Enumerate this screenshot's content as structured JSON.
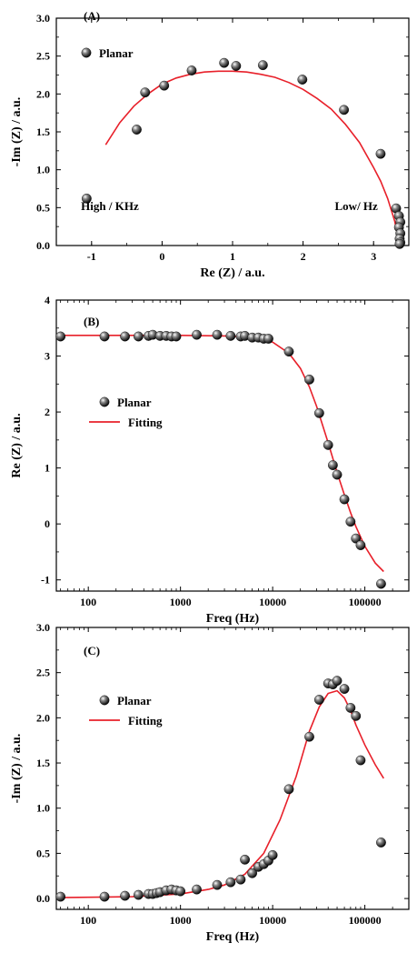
{
  "chart_data": [
    {
      "type": "scatter",
      "panel_label": "(A)",
      "xlabel": "Re (Z) / a.u.",
      "ylabel": "-Im (Z) / a.u.",
      "xlim": [
        -1.5,
        3.5
      ],
      "ylim": [
        0,
        3.0
      ],
      "x_ticks": [
        -1,
        0,
        1,
        2,
        3
      ],
      "y_ticks": [
        0.0,
        0.5,
        1.0,
        1.5,
        2.0,
        2.5,
        3.0
      ],
      "x_tick_labels": [
        "-1",
        "0",
        "1",
        "2",
        "3"
      ],
      "y_tick_labels": [
        "0.0",
        "0.5",
        "1.0",
        "1.5",
        "2.0",
        "2.5",
        "3.0"
      ],
      "legend": [
        {
          "label": "Planar",
          "style": "marker"
        }
      ],
      "annotations": [
        {
          "text": "High / KHz",
          "at": [
            -1.15,
            0.47
          ]
        },
        {
          "text": "Low/ Hz",
          "at": [
            2.45,
            0.47
          ]
        }
      ],
      "series": [
        {
          "name": "Planar",
          "style": "marker",
          "points": [
            [
              -1.07,
              0.62
            ],
            [
              -0.36,
              1.53
            ],
            [
              -0.24,
              2.02
            ],
            [
              0.03,
              2.11
            ],
            [
              0.42,
              2.31
            ],
            [
              0.88,
              2.41
            ],
            [
              1.05,
              2.37
            ],
            [
              1.43,
              2.38
            ],
            [
              1.99,
              2.19
            ],
            [
              2.58,
              1.79
            ],
            [
              3.1,
              1.21
            ],
            [
              3.32,
              0.49
            ],
            [
              3.36,
              0.39
            ],
            [
              3.38,
              0.31
            ],
            [
              3.36,
              0.24
            ],
            [
              3.38,
              0.16
            ],
            [
              3.37,
              0.09
            ],
            [
              3.38,
              0.04
            ],
            [
              3.37,
              0.02
            ]
          ]
        },
        {
          "name": "fit",
          "style": "line",
          "color": "#e8202a",
          "points": [
            [
              -0.8,
              1.33
            ],
            [
              -0.6,
              1.62
            ],
            [
              -0.4,
              1.84
            ],
            [
              -0.2,
              2.0
            ],
            [
              0.0,
              2.13
            ],
            [
              0.2,
              2.21
            ],
            [
              0.4,
              2.26
            ],
            [
              0.6,
              2.29
            ],
            [
              0.8,
              2.3
            ],
            [
              1.0,
              2.3
            ],
            [
              1.2,
              2.29
            ],
            [
              1.4,
              2.26
            ],
            [
              1.6,
              2.22
            ],
            [
              1.8,
              2.15
            ],
            [
              2.0,
              2.06
            ],
            [
              2.2,
              1.94
            ],
            [
              2.4,
              1.8
            ],
            [
              2.6,
              1.6
            ],
            [
              2.8,
              1.36
            ],
            [
              3.0,
              1.03
            ],
            [
              3.1,
              0.85
            ],
            [
              3.2,
              0.62
            ],
            [
              3.3,
              0.32
            ],
            [
              3.37,
              0.0
            ]
          ]
        }
      ]
    },
    {
      "type": "scatter",
      "panel_label": "(B)",
      "xlabel": "Freq (Hz)",
      "ylabel": "Re (Z) / a.u.",
      "x_scale": "log",
      "xlim": [
        45,
        300000
      ],
      "ylim": [
        -1.2,
        4.0
      ],
      "x_ticks": [
        100,
        1000,
        10000,
        100000
      ],
      "y_ticks": [
        -1,
        0,
        1,
        2,
        3,
        4
      ],
      "x_tick_labels": [
        "100",
        "1000",
        "10000",
        "100000"
      ],
      "y_tick_labels": [
        "-1",
        "0",
        "1",
        "2",
        "3",
        "4"
      ],
      "legend": [
        {
          "label": "Planar",
          "style": "marker"
        },
        {
          "label": "Fitting",
          "style": "line",
          "color": "#e8202a"
        }
      ],
      "series": [
        {
          "name": "Planar",
          "style": "marker",
          "points": [
            [
              50,
              3.35
            ],
            [
              150,
              3.35
            ],
            [
              250,
              3.35
            ],
            [
              350,
              3.35
            ],
            [
              450,
              3.36
            ],
            [
              500,
              3.38
            ],
            [
              600,
              3.36
            ],
            [
              700,
              3.36
            ],
            [
              800,
              3.35
            ],
            [
              900,
              3.35
            ],
            [
              1500,
              3.38
            ],
            [
              2500,
              3.38
            ],
            [
              3500,
              3.36
            ],
            [
              4500,
              3.35
            ],
            [
              5000,
              3.36
            ],
            [
              6000,
              3.33
            ],
            [
              7000,
              3.33
            ],
            [
              8000,
              3.31
            ],
            [
              9000,
              3.31
            ],
            [
              15000,
              3.08
            ],
            [
              25000,
              2.58
            ],
            [
              32000,
              1.98
            ],
            [
              40000,
              1.41
            ],
            [
              45000,
              1.05
            ],
            [
              50000,
              0.88
            ],
            [
              60000,
              0.44
            ],
            [
              70000,
              0.04
            ],
            [
              80000,
              -0.26
            ],
            [
              90000,
              -0.38
            ],
            [
              150000,
              -1.07
            ]
          ]
        },
        {
          "name": "Fitting",
          "style": "line",
          "color": "#e8202a",
          "points": [
            [
              50,
              3.37
            ],
            [
              1000,
              3.37
            ],
            [
              3000,
              3.36
            ],
            [
              6000,
              3.34
            ],
            [
              10000,
              3.25
            ],
            [
              15000,
              3.05
            ],
            [
              20000,
              2.78
            ],
            [
              25000,
              2.45
            ],
            [
              30000,
              2.1
            ],
            [
              40000,
              1.45
            ],
            [
              50000,
              0.92
            ],
            [
              60000,
              0.52
            ],
            [
              70000,
              0.2
            ],
            [
              80000,
              -0.05
            ],
            [
              100000,
              -0.4
            ],
            [
              130000,
              -0.7
            ],
            [
              160000,
              -0.85
            ]
          ]
        }
      ]
    },
    {
      "type": "scatter",
      "panel_label": "(C)",
      "xlabel": "Freq (Hz)",
      "ylabel": "-Im (Z) / a.u.",
      "x_scale": "log",
      "xlim": [
        45,
        300000
      ],
      "ylim": [
        -0.12,
        3.0
      ],
      "x_ticks": [
        100,
        1000,
        10000,
        100000
      ],
      "y_ticks": [
        0.0,
        0.5,
        1.0,
        1.5,
        2.0,
        2.5,
        3.0
      ],
      "x_tick_labels": [
        "100",
        "1000",
        "10000",
        "100000"
      ],
      "y_tick_labels": [
        "0.0",
        "0.5",
        "1.0",
        "1.5",
        "2.0",
        "2.5",
        "3.0"
      ],
      "legend": [
        {
          "label": "Planar",
          "style": "marker"
        },
        {
          "label": "Fitting",
          "style": "line",
          "color": "#e8202a"
        }
      ],
      "series": [
        {
          "name": "Planar",
          "style": "marker",
          "points": [
            [
              50,
              0.02
            ],
            [
              150,
              0.02
            ],
            [
              250,
              0.03
            ],
            [
              350,
              0.04
            ],
            [
              450,
              0.05
            ],
            [
              500,
              0.05
            ],
            [
              550,
              0.06
            ],
            [
              600,
              0.07
            ],
            [
              700,
              0.09
            ],
            [
              800,
              0.1
            ],
            [
              900,
              0.09
            ],
            [
              1000,
              0.08
            ],
            [
              1500,
              0.1
            ],
            [
              2500,
              0.15
            ],
            [
              3500,
              0.18
            ],
            [
              4500,
              0.21
            ],
            [
              5000,
              0.43
            ],
            [
              6000,
              0.28
            ],
            [
              7000,
              0.35
            ],
            [
              8000,
              0.38
            ],
            [
              9000,
              0.42
            ],
            [
              10000,
              0.48
            ],
            [
              15000,
              1.21
            ],
            [
              25000,
              1.79
            ],
            [
              32000,
              2.2
            ],
            [
              40000,
              2.38
            ],
            [
              45000,
              2.37
            ],
            [
              50000,
              2.41
            ],
            [
              60000,
              2.32
            ],
            [
              70000,
              2.11
            ],
            [
              80000,
              2.02
            ],
            [
              90000,
              1.53
            ],
            [
              150000,
              0.62
            ]
          ]
        },
        {
          "name": "Fitting",
          "style": "line",
          "color": "#e8202a",
          "points": [
            [
              50,
              0.01
            ],
            [
              300,
              0.02
            ],
            [
              1000,
              0.05
            ],
            [
              2000,
              0.1
            ],
            [
              3000,
              0.15
            ],
            [
              5000,
              0.27
            ],
            [
              8000,
              0.5
            ],
            [
              12000,
              0.87
            ],
            [
              18000,
              1.35
            ],
            [
              25000,
              1.85
            ],
            [
              32000,
              2.12
            ],
            [
              40000,
              2.27
            ],
            [
              50000,
              2.3
            ],
            [
              60000,
              2.22
            ],
            [
              70000,
              2.08
            ],
            [
              80000,
              1.92
            ],
            [
              100000,
              1.7
            ],
            [
              130000,
              1.48
            ],
            [
              160000,
              1.33
            ]
          ]
        }
      ]
    }
  ]
}
